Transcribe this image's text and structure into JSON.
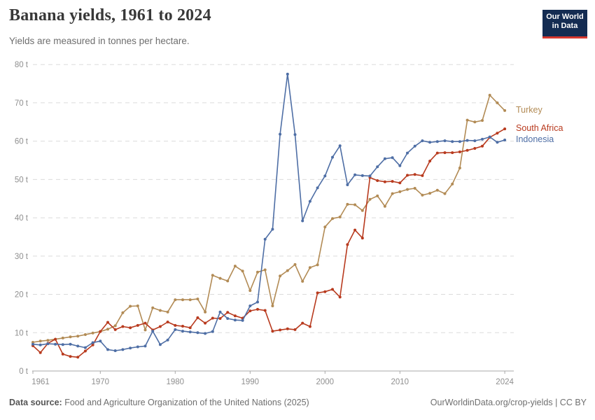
{
  "header": {
    "title": "Banana yields, 1961 to 2024",
    "subtitle": "Yields are measured in tonnes per hectare."
  },
  "logo": {
    "line1": "Our World",
    "line2": "in Data",
    "bg_color": "#142C52",
    "bar_color": "#D7382E"
  },
  "footer": {
    "source_label": "Data source:",
    "source_text": " Food and Agriculture Organization of the United Nations (2025)",
    "credit": "OurWorldinData.org/crop-yields | CC BY"
  },
  "chart_data": {
    "type": "line",
    "title": "Banana yields, 1961 to 2024",
    "ylabel": "tonnes per hectare",
    "ylim": [
      0,
      80
    ],
    "yticks": [
      0,
      10,
      20,
      30,
      40,
      50,
      60,
      70,
      80
    ],
    "ytick_suffix": " t",
    "xticks": [
      1961,
      1970,
      1980,
      1990,
      2000,
      2010,
      2024
    ],
    "grid": "horizontal-dashed",
    "legend_position": "right-end-labels",
    "x": [
      1961,
      1962,
      1963,
      1964,
      1965,
      1966,
      1967,
      1968,
      1969,
      1970,
      1971,
      1972,
      1973,
      1974,
      1975,
      1976,
      1977,
      1978,
      1979,
      1980,
      1981,
      1982,
      1983,
      1984,
      1985,
      1986,
      1987,
      1988,
      1989,
      1990,
      1991,
      1992,
      1993,
      1994,
      1995,
      1996,
      1997,
      1998,
      1999,
      2000,
      2001,
      2002,
      2003,
      2004,
      2005,
      2006,
      2007,
      2008,
      2009,
      2010,
      2011,
      2012,
      2013,
      2014,
      2015,
      2016,
      2017,
      2018,
      2019,
      2020,
      2021,
      2022,
      2023,
      2024
    ],
    "series": [
      {
        "name": "Turkey",
        "color": "#B28B55",
        "values": [
          7.5,
          7.8,
          8.0,
          8.3,
          8.6,
          8.9,
          9.1,
          9.5,
          9.9,
          10.3,
          10.9,
          11.8,
          15.2,
          16.9,
          17.0,
          10.7,
          16.5,
          15.8,
          15.4,
          18.6,
          18.6,
          18.6,
          18.8,
          15.4,
          25.0,
          24.2,
          23.5,
          27.4,
          26.1,
          21.0,
          25.8,
          26.4,
          17.0,
          24.8,
          26.2,
          27.8,
          23.4,
          27.0,
          27.7,
          37.6,
          39.8,
          40.2,
          43.5,
          43.4,
          41.9,
          44.8,
          45.7,
          43.0,
          46.3,
          46.8,
          47.4,
          47.7,
          45.9,
          46.4,
          47.2,
          46.3,
          48.8,
          53.0,
          65.5,
          65.0,
          65.4,
          72.0,
          70.0,
          68.0
        ]
      },
      {
        "name": "South Africa",
        "color": "#B83A1E",
        "values": [
          6.6,
          4.8,
          7.2,
          8.3,
          4.4,
          3.8,
          3.6,
          5.2,
          6.8,
          10.3,
          12.7,
          10.8,
          11.6,
          11.3,
          11.9,
          12.5,
          10.7,
          11.6,
          12.8,
          11.9,
          11.7,
          11.3,
          13.9,
          12.5,
          13.8,
          13.7,
          15.3,
          14.4,
          13.8,
          15.7,
          16.1,
          15.8,
          10.4,
          10.7,
          11.0,
          10.8,
          12.5,
          11.6,
          20.4,
          20.7,
          21.3,
          19.3,
          33.0,
          36.8,
          34.7,
          50.5,
          49.7,
          49.4,
          49.5,
          49.1,
          51.1,
          51.3,
          51.0,
          54.8,
          56.9,
          57.0,
          57.0,
          57.2,
          57.6,
          58.1,
          58.7,
          61.0,
          62.1,
          63.2
        ]
      },
      {
        "name": "Indonesia",
        "color": "#4E6EA5",
        "values": [
          7.0,
          6.8,
          7.1,
          7.0,
          6.9,
          7.0,
          6.5,
          6.1,
          7.4,
          7.8,
          5.6,
          5.3,
          5.6,
          6.0,
          6.3,
          6.5,
          10.4,
          6.9,
          8.1,
          10.8,
          10.4,
          10.2,
          10.0,
          9.8,
          10.3,
          15.4,
          13.7,
          13.3,
          13.2,
          17.0,
          18.0,
          34.4,
          37.0,
          61.8,
          77.5,
          61.7,
          39.2,
          44.3,
          47.8,
          50.9,
          55.8,
          58.8,
          48.6,
          51.2,
          51.0,
          50.9,
          53.3,
          55.4,
          55.7,
          53.6,
          56.9,
          58.7,
          60.1,
          59.7,
          59.9,
          60.1,
          59.9,
          59.9,
          60.2,
          60.1,
          60.5,
          61.1,
          59.7,
          60.3
        ]
      }
    ]
  }
}
